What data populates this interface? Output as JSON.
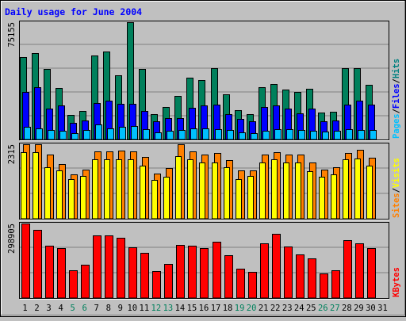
{
  "title": "Daily usage for June 2004",
  "colors": {
    "background": "#c0c0c0",
    "plot": "#c0c0c0",
    "title": "#0000ff",
    "hits": "#008080",
    "hits_bar": "#00805c",
    "files": "#0000ff",
    "pages": "#00c0ff",
    "visits": "#ffff00",
    "sites": "#ff8000",
    "kbytes": "#ff0000",
    "weekend_label": "#00805c",
    "weekday_label": "#000080"
  },
  "chart_data": [
    {
      "type": "bar",
      "panel": "hits-files-pages",
      "categories": [
        "1",
        "2",
        "3",
        "4",
        "5",
        "6",
        "7",
        "8",
        "9",
        "10",
        "11",
        "12",
        "13",
        "14",
        "15",
        "16",
        "17",
        "18",
        "19",
        "20",
        "21",
        "22",
        "23",
        "24",
        "25",
        "26",
        "27",
        "28",
        "29",
        "30",
        "31"
      ],
      "weekend_days": [
        "5",
        "6",
        "12",
        "13",
        "19",
        "20",
        "26",
        "27"
      ],
      "ylabel_max": "75155",
      "ylim": [
        0,
        75155
      ],
      "legend": [
        {
          "label": "Pages",
          "color": "#00c0ff"
        },
        {
          "label": "/",
          "color": "#000000"
        },
        {
          "label": "Files",
          "color": "#0000ff"
        },
        {
          "label": "/",
          "color": "#000000"
        },
        {
          "label": "Hits",
          "color": "#008080"
        }
      ],
      "series": [
        {
          "name": "Hits",
          "values": [
            52800,
            55300,
            45000,
            33000,
            15600,
            18100,
            54000,
            56600,
            41000,
            75155,
            45100,
            16300,
            21000,
            28000,
            39800,
            38000,
            45800,
            29000,
            18800,
            16100,
            33500,
            35400,
            31800,
            30400,
            32500,
            17400,
            18000,
            45600,
            45600,
            34800,
            0
          ]
        },
        {
          "name": "Files",
          "values": [
            30500,
            33700,
            19800,
            21700,
            10600,
            12100,
            23600,
            25000,
            22700,
            22800,
            18100,
            11500,
            13500,
            13600,
            20500,
            21800,
            22100,
            16500,
            13000,
            11900,
            20700,
            21800,
            19600,
            16700,
            19600,
            11500,
            12300,
            22200,
            25000,
            22200,
            0
          ]
        },
        {
          "name": "Pages",
          "values": [
            8300,
            7000,
            6000,
            5800,
            4200,
            5900,
            9700,
            7300,
            8200,
            8700,
            6800,
            4400,
            5700,
            5900,
            7000,
            6900,
            6800,
            6100,
            4400,
            4200,
            5800,
            6800,
            6700,
            6100,
            5800,
            5200,
            5400,
            6700,
            6300,
            6000,
            0
          ]
        }
      ]
    },
    {
      "type": "bar",
      "panel": "visits-sites",
      "categories": [
        "1",
        "2",
        "3",
        "4",
        "5",
        "6",
        "7",
        "8",
        "9",
        "10",
        "11",
        "12",
        "13",
        "14",
        "15",
        "16",
        "17",
        "18",
        "19",
        "20",
        "21",
        "22",
        "23",
        "24",
        "25",
        "26",
        "27",
        "28",
        "29",
        "30",
        "31"
      ],
      "ylabel_max": "2315",
      "ylim": [
        0,
        2315
      ],
      "legend": [
        {
          "label": "Sites",
          "color": "#ff8000"
        },
        {
          "label": "/",
          "color": "#000000"
        },
        {
          "label": "Visits",
          "color": "#ffff00"
        }
      ],
      "series": [
        {
          "name": "Sites",
          "values": [
            2315,
            2315,
            2000,
            1710,
            1390,
            1525,
            2100,
            2100,
            2130,
            2100,
            1920,
            1400,
            1580,
            2315,
            2100,
            2000,
            2050,
            1815,
            1500,
            1500,
            2000,
            2060,
            2000,
            2000,
            1740,
            1530,
            1590,
            2050,
            2150,
            1900,
            0
          ]
        },
        {
          "name": "Visits",
          "values": [
            2070,
            2070,
            1590,
            1490,
            1220,
            1320,
            1850,
            1850,
            1850,
            1850,
            1650,
            1210,
            1300,
            1950,
            1850,
            1750,
            1750,
            1590,
            1230,
            1320,
            1750,
            1850,
            1750,
            1750,
            1480,
            1310,
            1370,
            1850,
            1880,
            1640,
            0
          ]
        }
      ]
    },
    {
      "type": "bar",
      "panel": "kbytes",
      "categories": [
        "1",
        "2",
        "3",
        "4",
        "5",
        "6",
        "7",
        "8",
        "9",
        "10",
        "11",
        "12",
        "13",
        "14",
        "15",
        "16",
        "17",
        "18",
        "19",
        "20",
        "21",
        "22",
        "23",
        "24",
        "25",
        "26",
        "27",
        "28",
        "29",
        "30",
        "31"
      ],
      "ylabel_max": "298905",
      "ylim": [
        0,
        298905
      ],
      "legend": [
        {
          "label": "KBytes",
          "color": "#ff0000"
        }
      ],
      "series": [
        {
          "name": "KBytes",
          "values": [
            298905,
            275000,
            209000,
            201000,
            112000,
            135000,
            252000,
            250000,
            243000,
            205000,
            182000,
            109000,
            137000,
            214000,
            211000,
            200000,
            225000,
            171000,
            118000,
            106000,
            220000,
            257000,
            207000,
            176000,
            160000,
            97000,
            111000,
            233000,
            218000,
            201000,
            0
          ]
        }
      ]
    }
  ]
}
